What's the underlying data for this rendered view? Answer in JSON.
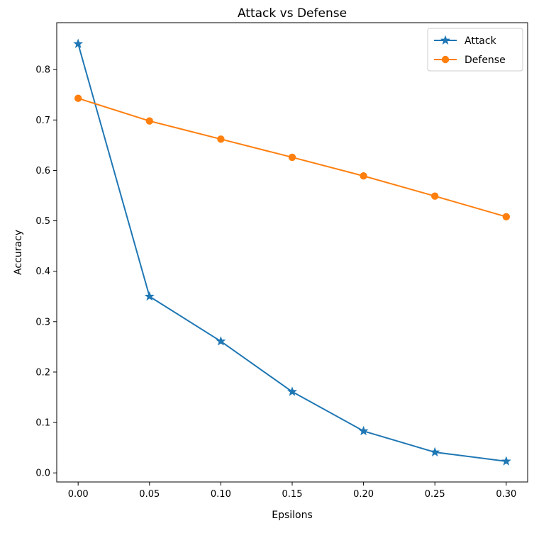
{
  "chart_data": {
    "type": "line",
    "title": "Attack vs Defense",
    "xlabel": "Epsilons",
    "ylabel": "Accuracy",
    "x": [
      0.0,
      0.05,
      0.1,
      0.15,
      0.2,
      0.25,
      0.3
    ],
    "xlim": [
      -0.015,
      0.315
    ],
    "ylim": [
      -0.018,
      0.893
    ],
    "x_ticks": [
      "0.00",
      "0.05",
      "0.10",
      "0.15",
      "0.20",
      "0.25",
      "0.30"
    ],
    "y_ticks": [
      "0.0",
      "0.1",
      "0.2",
      "0.3",
      "0.4",
      "0.5",
      "0.6",
      "0.7",
      "0.8"
    ],
    "grid": false,
    "legend_position": "top-right",
    "series": [
      {
        "name": "Attack",
        "color": "#1f77b4",
        "marker": "star",
        "values": [
          0.851,
          0.35,
          0.261,
          0.161,
          0.083,
          0.041,
          0.023
        ]
      },
      {
        "name": "Defense",
        "color": "#ff7f0e",
        "marker": "circle",
        "values": [
          0.743,
          0.698,
          0.662,
          0.626,
          0.589,
          0.549,
          0.508
        ]
      }
    ]
  }
}
